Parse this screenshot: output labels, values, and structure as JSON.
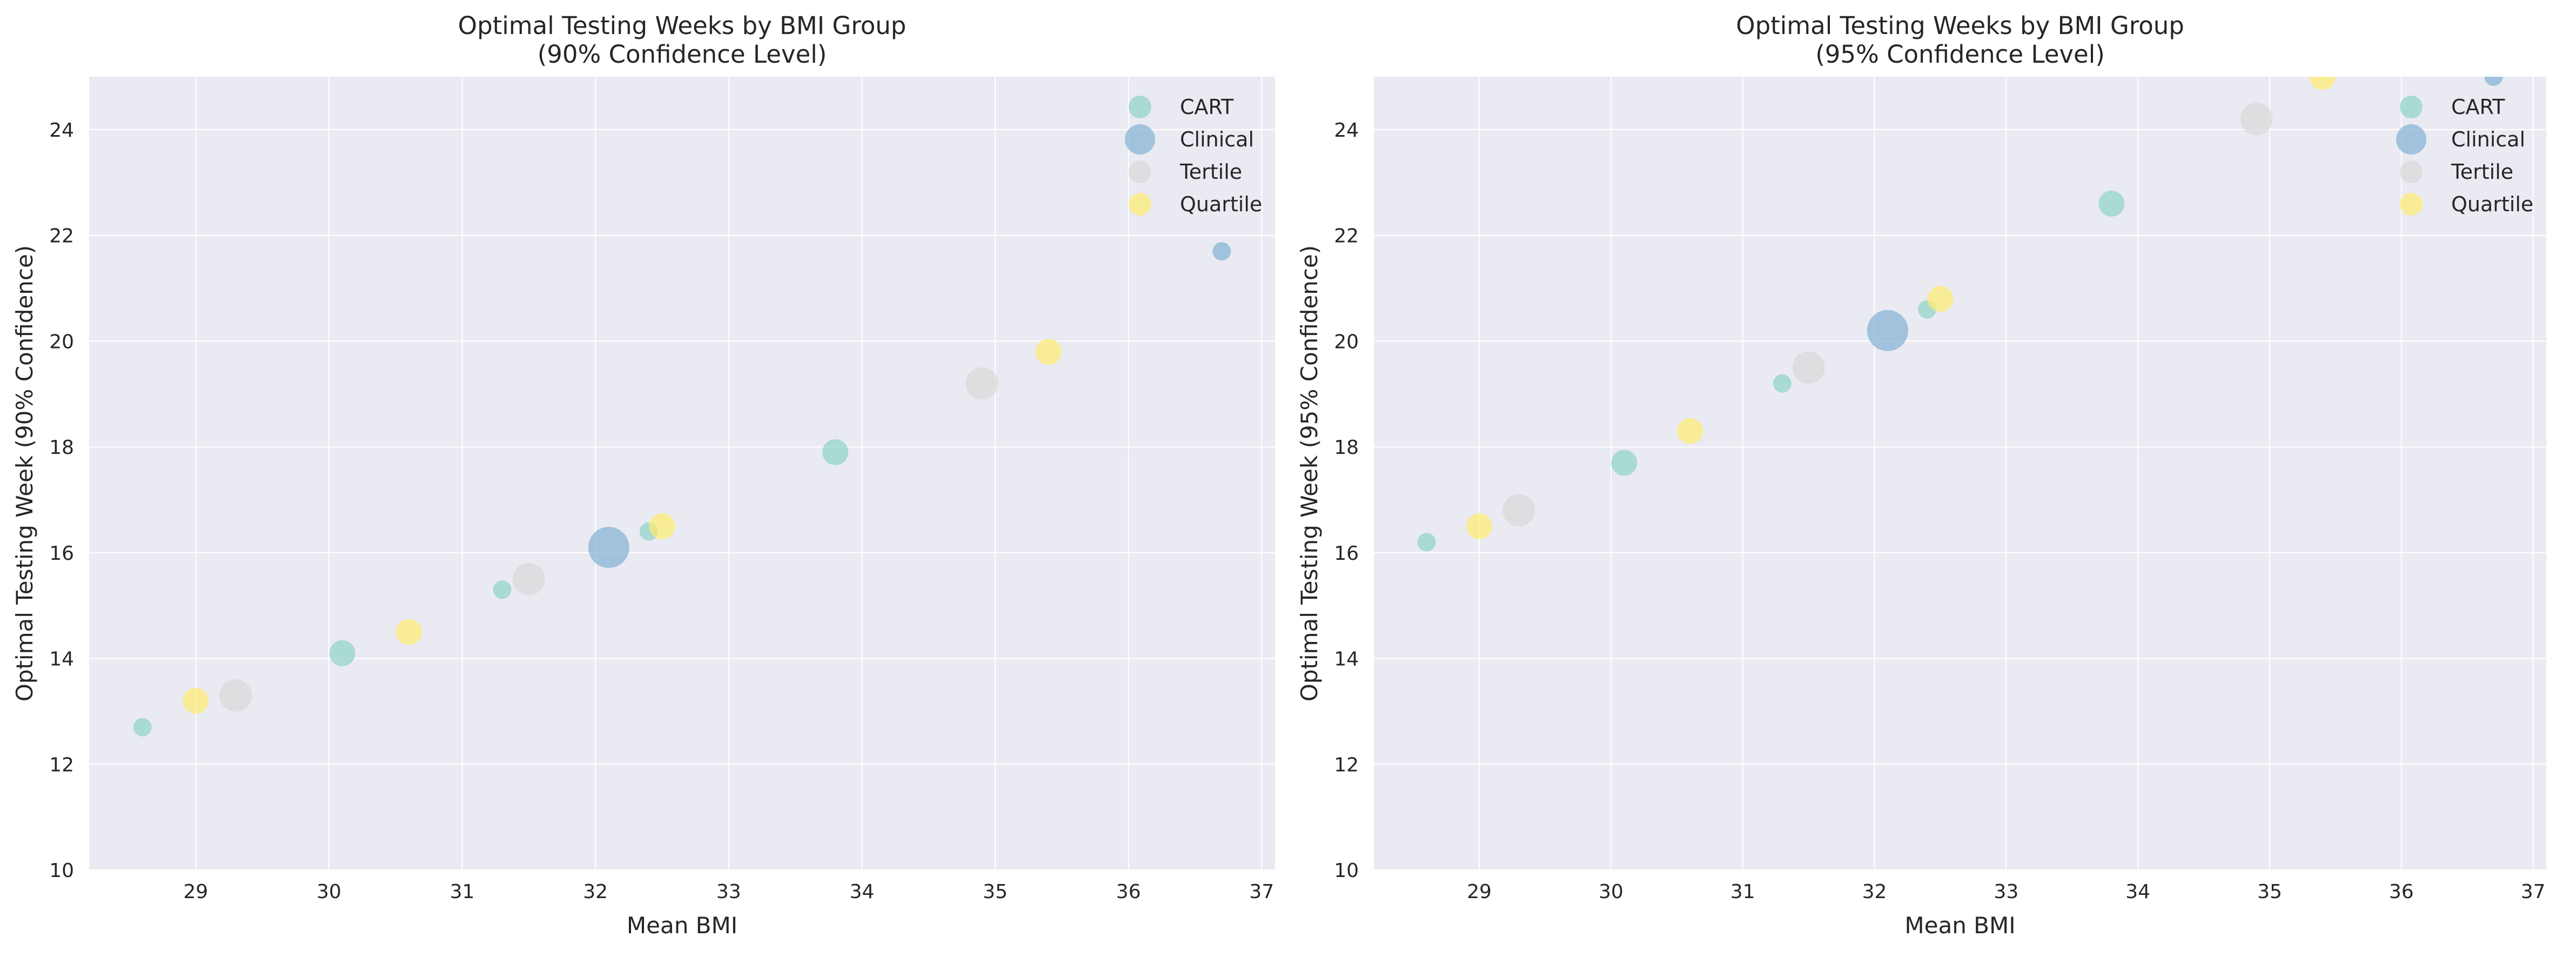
{
  "colors": {
    "CART": "#8dd3c7",
    "Clinical": "#80b1d3",
    "Tertile": "#d9d9d9",
    "Quartile": "#ffed6f",
    "plot_bg": "#eaeaf2",
    "grid": "#ffffff"
  },
  "chart_data": [
    {
      "type": "scatter",
      "title_line1": "Optimal Testing Weeks by BMI Group",
      "title_line2": "(90% Confidence Level)",
      "xlabel": "Mean BMI",
      "ylabel": "Optimal Testing Week (90% Confidence)",
      "xlim": [
        28.2,
        37.1
      ],
      "ylim": [
        10,
        25
      ],
      "xticks": [
        "29",
        "30",
        "31",
        "32",
        "33",
        "34",
        "35",
        "36",
        "37"
      ],
      "yticks": [
        "10",
        "12",
        "14",
        "16",
        "18",
        "20",
        "22",
        "24"
      ],
      "grid": true,
      "legend_position": "top-right",
      "series": [
        {
          "name": "CART",
          "points": [
            {
              "x": 28.6,
              "y": 12.7,
              "s": 1
            },
            {
              "x": 30.1,
              "y": 14.1,
              "s": 2
            },
            {
              "x": 31.3,
              "y": 15.3,
              "s": 1
            },
            {
              "x": 32.4,
              "y": 16.4,
              "s": 1
            },
            {
              "x": 33.8,
              "y": 17.9,
              "s": 2
            }
          ]
        },
        {
          "name": "Clinical",
          "points": [
            {
              "x": 32.1,
              "y": 16.1,
              "s": 4
            },
            {
              "x": 36.7,
              "y": 21.7,
              "s": 1
            }
          ]
        },
        {
          "name": "Tertile",
          "points": [
            {
              "x": 29.3,
              "y": 13.3,
              "s": 3
            },
            {
              "x": 31.5,
              "y": 15.5,
              "s": 3
            },
            {
              "x": 34.9,
              "y": 19.2,
              "s": 3
            }
          ]
        },
        {
          "name": "Quartile",
          "points": [
            {
              "x": 29.0,
              "y": 13.2,
              "s": 2
            },
            {
              "x": 30.6,
              "y": 14.5,
              "s": 2
            },
            {
              "x": 32.5,
              "y": 16.5,
              "s": 2
            },
            {
              "x": 35.4,
              "y": 19.8,
              "s": 2
            }
          ]
        }
      ]
    },
    {
      "type": "scatter",
      "title_line1": "Optimal Testing Weeks by BMI Group",
      "title_line2": "(95% Confidence Level)",
      "xlabel": "Mean BMI",
      "ylabel": "Optimal Testing Week (95% Confidence)",
      "xlim": [
        28.2,
        37.1
      ],
      "ylim": [
        10,
        25
      ],
      "xticks": [
        "29",
        "30",
        "31",
        "32",
        "33",
        "34",
        "35",
        "36",
        "37"
      ],
      "yticks": [
        "10",
        "12",
        "14",
        "16",
        "18",
        "20",
        "22",
        "24"
      ],
      "grid": true,
      "legend_position": "top-right",
      "series": [
        {
          "name": "CART",
          "points": [
            {
              "x": 28.6,
              "y": 16.2,
              "s": 1
            },
            {
              "x": 30.1,
              "y": 17.7,
              "s": 2
            },
            {
              "x": 31.3,
              "y": 19.2,
              "s": 1
            },
            {
              "x": 32.4,
              "y": 20.6,
              "s": 1
            },
            {
              "x": 33.8,
              "y": 22.6,
              "s": 2
            }
          ]
        },
        {
          "name": "Clinical",
          "points": [
            {
              "x": 32.1,
              "y": 20.2,
              "s": 4
            },
            {
              "x": 36.7,
              "y": 25.0,
              "s": 1
            }
          ]
        },
        {
          "name": "Tertile",
          "points": [
            {
              "x": 29.3,
              "y": 16.8,
              "s": 3
            },
            {
              "x": 31.5,
              "y": 19.5,
              "s": 3
            },
            {
              "x": 34.9,
              "y": 24.2,
              "s": 3
            }
          ]
        },
        {
          "name": "Quartile",
          "points": [
            {
              "x": 29.0,
              "y": 16.5,
              "s": 2
            },
            {
              "x": 30.6,
              "y": 18.3,
              "s": 2
            },
            {
              "x": 32.5,
              "y": 20.8,
              "s": 2
            },
            {
              "x": 35.4,
              "y": 25.0,
              "s": 2
            }
          ]
        }
      ]
    }
  ]
}
